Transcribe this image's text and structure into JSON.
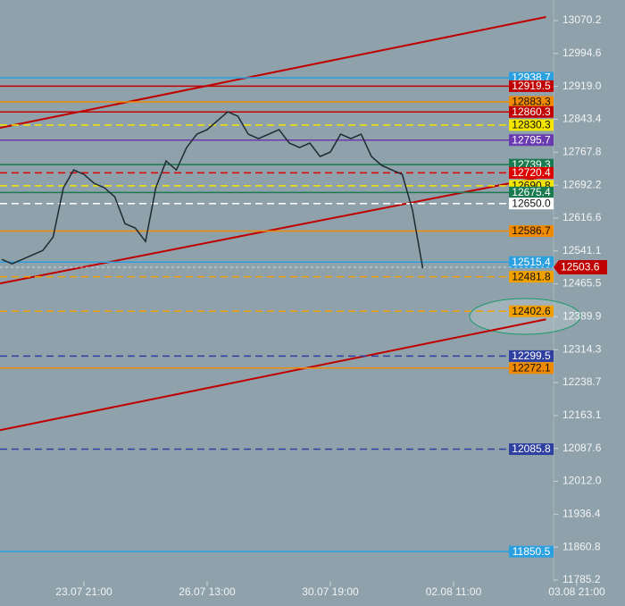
{
  "chart_data": {
    "type": "line",
    "categories": [
      null,
      null,
      null,
      null,
      null,
      null,
      null,
      null,
      "23.07 21:00",
      null,
      null,
      null,
      null,
      null,
      null,
      null,
      null,
      null,
      null,
      null,
      "26.07 13:00",
      null,
      null,
      null,
      null,
      null,
      null,
      null,
      null,
      null,
      null,
      null,
      "30.07 19:00",
      null,
      null,
      null,
      null,
      null,
      null,
      null,
      null,
      null,
      null,
      null,
      "02.08 11:00",
      null,
      null,
      null,
      null,
      null,
      null,
      null,
      null,
      null,
      null,
      null,
      "03.08 21:00"
    ],
    "values": [
      12521.7,
      12511.5,
      12521.7,
      12532.0,
      12542.3,
      12573.1,
      12686.1,
      12727.1,
      12716.9,
      12696.3,
      12686.1,
      12665.5,
      12603.9,
      12593.6,
      12562.8,
      12686.1,
      12747.7,
      12727.1,
      12778.5,
      12809.3,
      12819.6,
      12840.1,
      12860.6,
      12850.4,
      12809.3,
      12799.0,
      12809.3,
      12819.6,
      12788.8,
      12778.5,
      12788.8,
      12758.0,
      12768.2,
      12809.3,
      12799.0,
      12809.3,
      12758.0,
      12737.4,
      12727.1,
      12716.9,
      12634.7,
      12501.2,
      null,
      null,
      null,
      null,
      null,
      null,
      null,
      null,
      null,
      null,
      null,
      null,
      null,
      null,
      null
    ],
    "color": "#1e2a30",
    "last_price": 12503.6,
    "levels": {
      "values": [
        12938.7,
        12919.5,
        12883.3,
        12860.3,
        12830.3,
        12795.7,
        12739.3,
        12720.4,
        12690.8,
        12675.4,
        12650,
        12586.7,
        12515.4,
        12481.8,
        12402.6,
        12299.5,
        12272.1,
        12085.8,
        11850.5
      ],
      "value_labels": [
        "12938.7",
        "12919.5",
        "12883.3",
        "12860.3",
        "12830.3",
        "12795.7",
        "12739.3",
        "12720.4",
        "12690.8",
        "12675.4",
        "12650.0",
        "12586.7",
        "12515.4",
        "12481.8",
        "12402.6",
        "12299.5",
        "12272.1",
        "12085.8",
        "11850.5"
      ],
      "colors": [
        "#2aa0e0",
        "#c00000",
        "#f08a00",
        "#c00000",
        "#f5e600",
        "#6a3ab0",
        "#1a7a50",
        "#dd0000",
        "#f5e600",
        "#1a7a50",
        "#ffffff",
        "#f08a00",
        "#2aa0e0",
        "#f0a000",
        "#f0a000",
        "#3040a0",
        "#f08a00",
        "#3040a0",
        "#2aa0e0"
      ],
      "dashed": [
        false,
        false,
        false,
        false,
        true,
        false,
        false,
        true,
        true,
        false,
        true,
        false,
        false,
        true,
        true,
        true,
        false,
        true,
        false
      ]
    },
    "trendlines": [
      {
        "color": "#c00000",
        "x": [
          0,
          53
        ],
        "values": [
          12823.7,
          13078.4
        ]
      },
      {
        "color": "#c00000",
        "x": [
          0,
          53
        ],
        "values": [
          12466.3,
          12712.8
        ]
      },
      {
        "color": "#c00000",
        "x": [
          0,
          53
        ],
        "values": [
          12129.4,
          12384.1
        ]
      }
    ],
    "ylim": [
      11725.6,
      13117.4
    ],
    "yticks": [
      13070.2,
      12994.6,
      {
        "value": 12919,
        "label": "12919.0"
      },
      12843.4,
      12767.8,
      12692.2,
      12616.6,
      12541.1,
      12465.5,
      12389.9,
      12314.3,
      12238.7,
      12163.1,
      12087.6,
      {
        "value": 12012,
        "label": "12012.0"
      },
      11936.4,
      11860.8,
      11785.2
    ]
  }
}
